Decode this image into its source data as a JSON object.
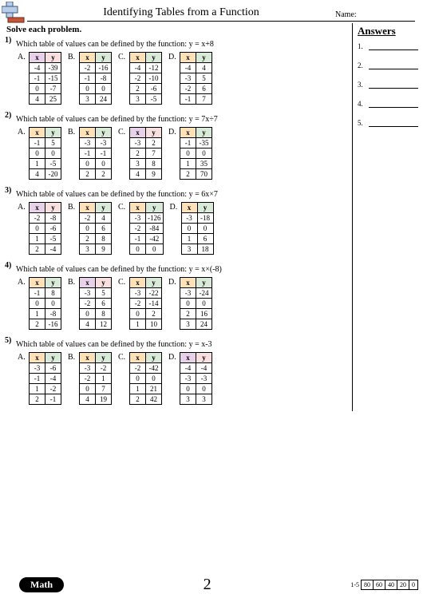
{
  "title": "Identifying Tables from a Function",
  "name_label": "Name:",
  "instruction": "Solve each problem.",
  "answers_title": "Answers",
  "page_number": "2",
  "math_label": "Math",
  "score_label": "1-5",
  "score_values": [
    "80",
    "60",
    "40",
    "20",
    "0"
  ],
  "header_colors": {
    "x": "#fde2b9",
    "y": "#d9ead8"
  },
  "alt_header_colors": {
    "x": "#e8d2ea",
    "y": "#f9e0e0"
  },
  "problems": [
    {
      "num": "1)",
      "text": "Which table of values can be defined by the function: y = x+8",
      "choices": [
        {
          "label": "A.",
          "hdr": "alt",
          "rows": [
            [
              "-4",
              "-39"
            ],
            [
              "-1",
              "-15"
            ],
            [
              "0",
              "-7"
            ],
            [
              "4",
              "25"
            ]
          ]
        },
        {
          "label": "B.",
          "hdr": "main",
          "rows": [
            [
              "-2",
              "-16"
            ],
            [
              "-1",
              "-8"
            ],
            [
              "0",
              "0"
            ],
            [
              "3",
              "24"
            ]
          ]
        },
        {
          "label": "C.",
          "hdr": "main",
          "rows": [
            [
              "-4",
              "-12"
            ],
            [
              "-2",
              "-10"
            ],
            [
              "2",
              "-6"
            ],
            [
              "3",
              "-5"
            ]
          ]
        },
        {
          "label": "D.",
          "hdr": "main",
          "rows": [
            [
              "-4",
              "4"
            ],
            [
              "-3",
              "5"
            ],
            [
              "-2",
              "6"
            ],
            [
              "-1",
              "7"
            ]
          ]
        }
      ]
    },
    {
      "num": "2)",
      "text": "Which table of values can be defined by the function: y = 7x÷7",
      "choices": [
        {
          "label": "A.",
          "hdr": "main",
          "rows": [
            [
              "-1",
              "5"
            ],
            [
              "0",
              "0"
            ],
            [
              "1",
              "-5"
            ],
            [
              "4",
              "-20"
            ]
          ]
        },
        {
          "label": "B.",
          "hdr": "main",
          "rows": [
            [
              "-3",
              "-3"
            ],
            [
              "-1",
              "-1"
            ],
            [
              "0",
              "0"
            ],
            [
              "2",
              "2"
            ]
          ]
        },
        {
          "label": "C.",
          "hdr": "alt",
          "rows": [
            [
              "-3",
              "2"
            ],
            [
              "2",
              "7"
            ],
            [
              "3",
              "8"
            ],
            [
              "4",
              "9"
            ]
          ]
        },
        {
          "label": "D.",
          "hdr": "main",
          "rows": [
            [
              "-1",
              "-35"
            ],
            [
              "0",
              "0"
            ],
            [
              "1",
              "35"
            ],
            [
              "2",
              "70"
            ]
          ]
        }
      ]
    },
    {
      "num": "3)",
      "text": "Which table of values can be defined by the function: y = 6x×7",
      "choices": [
        {
          "label": "A.",
          "hdr": "alt",
          "rows": [
            [
              "-2",
              "-8"
            ],
            [
              "0",
              "-6"
            ],
            [
              "1",
              "-5"
            ],
            [
              "2",
              "-4"
            ]
          ]
        },
        {
          "label": "B.",
          "hdr": "main",
          "rows": [
            [
              "-2",
              "4"
            ],
            [
              "0",
              "6"
            ],
            [
              "2",
              "8"
            ],
            [
              "3",
              "9"
            ]
          ]
        },
        {
          "label": "C.",
          "hdr": "main",
          "rows": [
            [
              "-3",
              "-126"
            ],
            [
              "-2",
              "-84"
            ],
            [
              "-1",
              "-42"
            ],
            [
              "0",
              "0"
            ]
          ]
        },
        {
          "label": "D.",
          "hdr": "main",
          "rows": [
            [
              "-3",
              "-18"
            ],
            [
              "0",
              "0"
            ],
            [
              "1",
              "6"
            ],
            [
              "3",
              "18"
            ]
          ]
        }
      ]
    },
    {
      "num": "4)",
      "text": "Which table of values can be defined by the function: y = x×(-8)",
      "choices": [
        {
          "label": "A.",
          "hdr": "main",
          "rows": [
            [
              "-1",
              "8"
            ],
            [
              "0",
              "0"
            ],
            [
              "1",
              "-8"
            ],
            [
              "2",
              "-16"
            ]
          ]
        },
        {
          "label": "B.",
          "hdr": "alt",
          "rows": [
            [
              "-3",
              "5"
            ],
            [
              "-2",
              "6"
            ],
            [
              "0",
              "8"
            ],
            [
              "4",
              "12"
            ]
          ]
        },
        {
          "label": "C.",
          "hdr": "main",
          "rows": [
            [
              "-3",
              "-22"
            ],
            [
              "-2",
              "-14"
            ],
            [
              "0",
              "2"
            ],
            [
              "1",
              "10"
            ]
          ]
        },
        {
          "label": "D.",
          "hdr": "main",
          "rows": [
            [
              "-3",
              "-24"
            ],
            [
              "0",
              "0"
            ],
            [
              "2",
              "16"
            ],
            [
              "3",
              "24"
            ]
          ]
        }
      ]
    },
    {
      "num": "5)",
      "text": "Which table of values can be defined by the function: y = x-3",
      "choices": [
        {
          "label": "A.",
          "hdr": "main",
          "rows": [
            [
              "-3",
              "-6"
            ],
            [
              "-1",
              "-4"
            ],
            [
              "1",
              "-2"
            ],
            [
              "2",
              "-1"
            ]
          ]
        },
        {
          "label": "B.",
          "hdr": "main",
          "rows": [
            [
              "-3",
              "-2"
            ],
            [
              "-2",
              "1"
            ],
            [
              "0",
              "7"
            ],
            [
              "4",
              "19"
            ]
          ]
        },
        {
          "label": "C.",
          "hdr": "main",
          "rows": [
            [
              "-2",
              "-42"
            ],
            [
              "0",
              "0"
            ],
            [
              "1",
              "21"
            ],
            [
              "2",
              "42"
            ]
          ]
        },
        {
          "label": "D.",
          "hdr": "alt",
          "rows": [
            [
              "-4",
              "-4"
            ],
            [
              "-3",
              "-3"
            ],
            [
              "0",
              "0"
            ],
            [
              "3",
              "3"
            ]
          ]
        }
      ]
    }
  ],
  "answer_lines": [
    "1.",
    "2.",
    "3.",
    "4.",
    "5."
  ]
}
